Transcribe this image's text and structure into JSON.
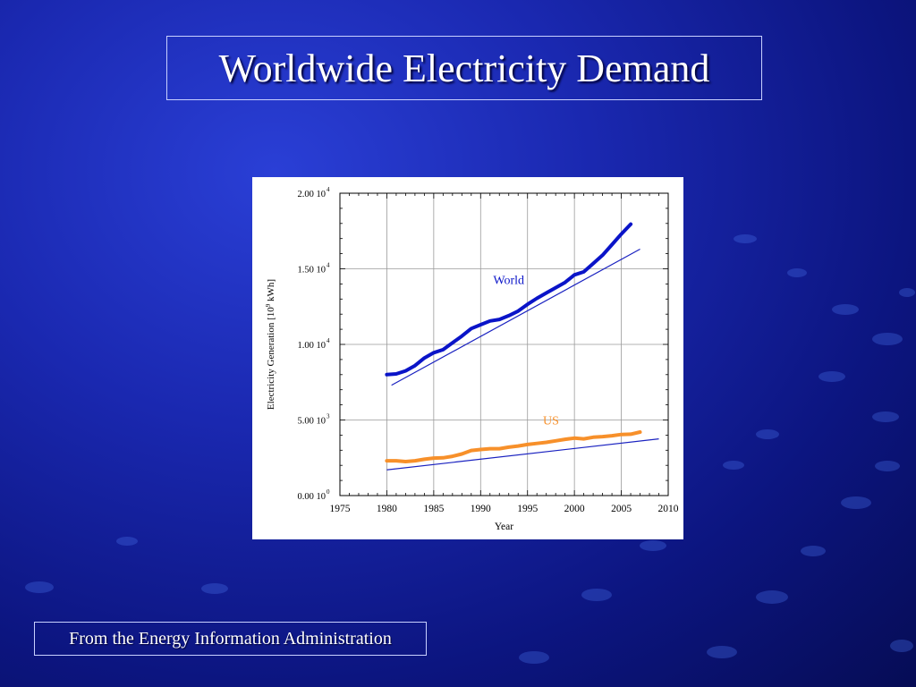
{
  "slide": {
    "title": "Worldwide Electricity Demand",
    "source": "From the Energy Information Administration"
  },
  "colors": {
    "world": "#0a14c8",
    "us": "#f7902a",
    "trend": "#1a22c0"
  },
  "chart_data": {
    "type": "line",
    "title": "",
    "xlabel": "Year",
    "ylabel": "Electricity Generation [10",
    "ylabel_exp": "9",
    "ylabel_tail": " kWh]",
    "xlim": [
      1975,
      2010
    ],
    "ylim": [
      0,
      20000
    ],
    "x_ticks": [
      1975,
      1980,
      1985,
      1990,
      1995,
      2000,
      2005,
      2010
    ],
    "y_ticks": [
      {
        "value": 0,
        "mantissa": "0.00 10",
        "exp": "0"
      },
      {
        "value": 5000,
        "mantissa": "5.00 10",
        "exp": "3"
      },
      {
        "value": 10000,
        "mantissa": "1.00 10",
        "exp": "4"
      },
      {
        "value": 15000,
        "mantissa": "1.50 10",
        "exp": "4"
      },
      {
        "value": 20000,
        "mantissa": "2.00 10",
        "exp": "4"
      }
    ],
    "grid": true,
    "series": [
      {
        "name": "World",
        "x": [
          1980,
          1981,
          1982,
          1983,
          1984,
          1985,
          1986,
          1987,
          1988,
          1989,
          1990,
          1991,
          1992,
          1993,
          1994,
          1995,
          1996,
          1997,
          1998,
          1999,
          2000,
          2001,
          2002,
          2003,
          2004,
          2005,
          2006
        ],
        "y": [
          8000,
          8050,
          8250,
          8600,
          9100,
          9450,
          9650,
          10100,
          10550,
          11050,
          11300,
          11550,
          11650,
          11900,
          12200,
          12650,
          13050,
          13400,
          13750,
          14100,
          14600,
          14800,
          15350,
          15900,
          16600,
          17300,
          17950
        ]
      },
      {
        "name": "US",
        "x": [
          1980,
          1981,
          1982,
          1983,
          1984,
          1985,
          1986,
          1987,
          1988,
          1989,
          1990,
          1991,
          1992,
          1993,
          1994,
          1995,
          1996,
          1997,
          1998,
          1999,
          2000,
          2001,
          2002,
          2003,
          2004,
          2005,
          2006,
          2007
        ],
        "y": [
          2300,
          2300,
          2250,
          2300,
          2400,
          2480,
          2500,
          2600,
          2750,
          2980,
          3050,
          3100,
          3100,
          3200,
          3280,
          3380,
          3450,
          3520,
          3620,
          3720,
          3800,
          3750,
          3860,
          3900,
          3960,
          4040,
          4060,
          4200
        ]
      }
    ],
    "trendlines": [
      {
        "series": "World",
        "x": [
          1980.5,
          2007
        ],
        "y": [
          7300,
          16300
        ]
      },
      {
        "series": "US",
        "x": [
          1980,
          2009
        ],
        "y": [
          1700,
          3750
        ]
      }
    ],
    "annotations": [
      {
        "text": "World",
        "x": 1993,
        "y": 14000,
        "series": "World"
      },
      {
        "text": "US",
        "x": 1997.5,
        "y": 4700,
        "series": "US"
      }
    ]
  }
}
